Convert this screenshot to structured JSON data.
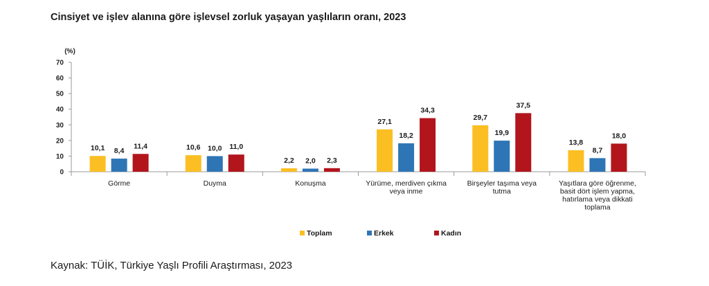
{
  "title": "Cinsiyet ve işlev alanına göre işlevsel zorluk yaşayan yaşlıların oranı, 2023",
  "source": "Kaynak: TÜİK, Türkiye Yaşlı Profili Araştırması, 2023",
  "chart_data": {
    "type": "bar",
    "title": "Cinsiyet ve işlev alanına göre işlevsel zorluk yaşayan yaşlıların oranı, 2023",
    "xlabel": "",
    "ylabel": "(%)",
    "ylim": [
      0,
      70
    ],
    "yticks": [
      0,
      10,
      20,
      30,
      40,
      50,
      60,
      70
    ],
    "grid": false,
    "legend_position": "bottom",
    "categories": [
      [
        "Görme"
      ],
      [
        "Duyma"
      ],
      [
        "Konuşma"
      ],
      [
        "Yürüme, merdiven çıkma",
        "veya inme"
      ],
      [
        "Birşeyler taşıma veya",
        "tutma"
      ],
      [
        "Yaşıtlara göre öğrenme,",
        "basit dört işlem yapma,",
        "hatırlama veya dikkati",
        "toplama"
      ]
    ],
    "series": [
      {
        "name": "Toplam",
        "color": "#FBBF24",
        "values": [
          10.1,
          10.6,
          2.2,
          27.1,
          29.7,
          13.8
        ],
        "labels": [
          "10,1",
          "10,6",
          "2,2",
          "27,1",
          "29,7",
          "13,8"
        ]
      },
      {
        "name": "Erkek",
        "color": "#2E75B6",
        "values": [
          8.4,
          10.0,
          2.0,
          18.2,
          19.9,
          8.7
        ],
        "labels": [
          "8,4",
          "10,0",
          "2,0",
          "18,2",
          "19,9",
          "8,7"
        ]
      },
      {
        "name": "Kadın",
        "color": "#B2151C",
        "values": [
          11.4,
          11.0,
          2.3,
          34.3,
          37.5,
          18.0
        ],
        "labels": [
          "11,4",
          "11,0",
          "2,3",
          "34,3",
          "37,5",
          "18,0"
        ]
      }
    ]
  }
}
